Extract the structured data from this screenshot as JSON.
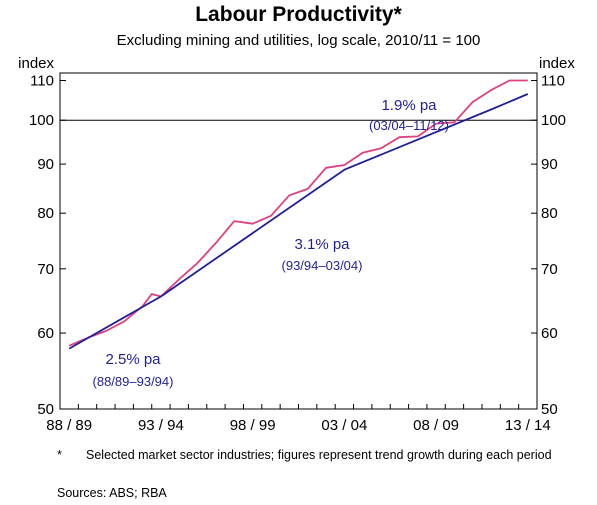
{
  "chart_data": {
    "type": "line",
    "title": "Labour Productivity*",
    "subtitle": "Excluding mining and utilities, log scale, 2010/11 = 100",
    "y_unit_label": "index",
    "y_scale": "log",
    "ylim": [
      50,
      112
    ],
    "y_ticks": [
      50,
      60,
      70,
      80,
      90,
      100,
      110
    ],
    "x_tick_labels": [
      "88 / 89",
      "93 / 94",
      "98 / 99",
      "03 / 04",
      "08 / 09",
      "13 / 14"
    ],
    "x_tick_years": [
      1988.5,
      1993.5,
      1998.5,
      2003.5,
      2008.5,
      2013.5
    ],
    "xlim": [
      1988.0,
      2014.0
    ],
    "reference_line": 100,
    "series": [
      {
        "color": "#e0407f",
        "x": [
          1988.5,
          1989.5,
          1990.5,
          1991.5,
          1992.5,
          1993.0,
          1993.5,
          1994.5,
          1995.5,
          1996.5,
          1997.5,
          1998.5,
          1999.5,
          2000.5,
          2001.5,
          2002.5,
          2003.5,
          2004.5,
          2005.5,
          2006.5,
          2007.5,
          2008.5,
          2009.5,
          2010.5,
          2011.5,
          2012.5,
          2013.5
        ],
        "y": [
          58.2,
          59.3,
          60.3,
          61.7,
          64.0,
          65.9,
          65.5,
          68.3,
          71.0,
          74.5,
          78.5,
          78.0,
          79.5,
          83.5,
          84.8,
          89.2,
          89.8,
          92.5,
          93.5,
          96.0,
          96.2,
          99.2,
          99.5,
          104.5,
          107.5,
          110.0,
          110.0
        ]
      },
      {
        "color": "#1f1f99",
        "x": [
          1988.5,
          1993.5,
          2003.5,
          2011.5,
          2013.5
        ],
        "y": [
          57.8,
          65.5,
          88.8,
          102.6,
          106.5
        ]
      }
    ],
    "annotations": [
      {
        "text": "2.5% pa",
        "sub": "(88/89–93/94)"
      },
      {
        "text": "3.1% pa",
        "sub": "(93/94–03/04)"
      },
      {
        "text": "1.9% pa",
        "sub": "(03/04–11/12)"
      }
    ]
  },
  "footnote": {
    "mark": "*",
    "text": "Selected market sector industries; figures represent trend growth during each period"
  },
  "sources": "Sources:  ABS; RBA"
}
